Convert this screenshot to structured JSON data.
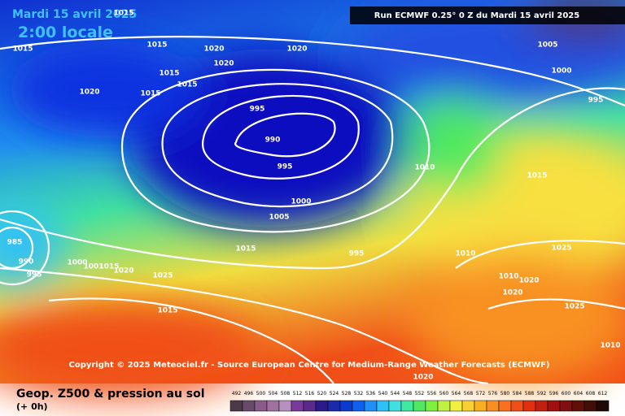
{
  "map": {
    "title_date": "Mardi 15 avril 2025",
    "title_time": "2:00 locale",
    "run": "Run ECMWF 0.25° 0 Z du Mardi 15 avril 2025",
    "copyright": "Copyright © 2025 Meteociel.fr - Source European Centre for Medium-Range Weather Forecasts (ECMWF)",
    "isobar_labels": [
      1015,
      1015,
      1020,
      1015,
      1015,
      1015,
      1015,
      1020,
      1020,
      1020,
      1005,
      1000,
      995,
      995,
      990,
      995,
      1000,
      1005,
      1010,
      1015,
      1015,
      995,
      1010,
      1025,
      1010,
      1020,
      1020,
      1025,
      985,
      990,
      995,
      1000,
      1001,
      1015,
      1020,
      1025,
      1015,
      1010,
      1020
    ]
  },
  "footer": {
    "title": "Geop. Z500 & pression au sol",
    "subtitle": "(+ 0h)",
    "scale": {
      "values": [
        492,
        496,
        500,
        504,
        508,
        512,
        516,
        520,
        524,
        528,
        532,
        536,
        540,
        544,
        548,
        552,
        556,
        560,
        564,
        568,
        572,
        576,
        580,
        584,
        588,
        592,
        596,
        600,
        604,
        608,
        612
      ],
      "colors": [
        "#4a3a4a",
        "#6a4a6a",
        "#8a5a8a",
        "#a070a0",
        "#b890c0",
        "#7a3a9a",
        "#5a2a8a",
        "#2a1a8a",
        "#1a2aaa",
        "#0a3ad0",
        "#1060f0",
        "#2090f8",
        "#30c0f8",
        "#40e0e0",
        "#40e8a0",
        "#50e860",
        "#80f040",
        "#c0f040",
        "#f0f040",
        "#f8d030",
        "#f8b020",
        "#f89020",
        "#f87020",
        "#f05018",
        "#e03010",
        "#c02010",
        "#a01010",
        "#801010",
        "#601008",
        "#401008",
        "#200808"
      ]
    }
  }
}
